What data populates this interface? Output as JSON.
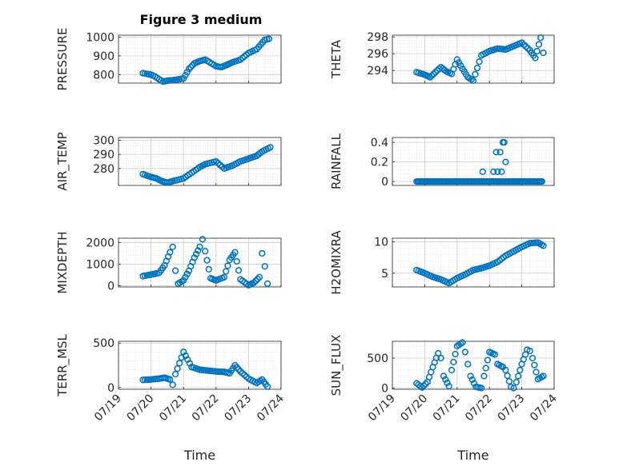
{
  "figure_title": "Figure 3 medium",
  "colors": {
    "marker": "#0072BD",
    "axis": "#262626",
    "grid": "#DCDCDC"
  },
  "chart_data": [
    {
      "type": "scatter",
      "ylabel": "PRESSURE",
      "title": "Figure 3 medium",
      "xlabel": "",
      "xlim": [
        "07/19",
        "07/24"
      ],
      "ylim": [
        755,
        1010
      ],
      "yticks": [
        800,
        900,
        1000
      ],
      "grid": true,
      "x": [
        "07/19 18:00",
        "07/20 00:00",
        "07/20 03:00",
        "07/20 06:00",
        "07/20 09:00",
        "07/20 12:00",
        "07/20 18:00",
        "07/21 00:00",
        "07/21 04:00",
        "07/21 08:00",
        "07/21 12:00",
        "07/21 16:00",
        "07/22 00:00",
        "07/22 04:00",
        "07/22 08:00",
        "07/22 12:00",
        "07/22 18:00",
        "07/23 00:00",
        "07/23 06:00",
        "07/23 09:00",
        "07/23 12:00",
        "07/23 15:00"
      ],
      "values": [
        808,
        800,
        790,
        775,
        763,
        768,
        772,
        780,
        830,
        860,
        872,
        880,
        845,
        840,
        852,
        865,
        880,
        915,
        935,
        960,
        985,
        990
      ]
    },
    {
      "type": "scatter",
      "ylabel": "THETA",
      "xlabel": "",
      "xlim": [
        "07/19",
        "07/24"
      ],
      "ylim": [
        292.5,
        298.2
      ],
      "yticks": [
        294,
        296,
        298
      ],
      "grid": true,
      "x": [
        "07/19 18:00",
        "07/20 00:00",
        "07/20 04:00",
        "07/20 08:00",
        "07/20 12:00",
        "07/20 16:00",
        "07/20 20:00",
        "07/21 00:00",
        "07/21 04:00",
        "07/21 08:00",
        "07/21 12:00",
        "07/21 18:00",
        "07/22 00:00",
        "07/22 06:00",
        "07/22 12:00",
        "07/22 18:00",
        "07/23 00:00",
        "07/23 06:00",
        "07/23 10:00",
        "07/23 14:00",
        "07/23 16:00"
      ],
      "values": [
        293.8,
        293.5,
        293.2,
        293.8,
        294.4,
        293.9,
        293.6,
        295.3,
        294.2,
        293.2,
        292.8,
        295.8,
        296.3,
        296.6,
        296.5,
        296.9,
        297.3,
        296.4,
        295.5,
        297.9,
        296.1
      ]
    },
    {
      "type": "scatter",
      "ylabel": "AIR_TEMP",
      "xlabel": "",
      "xlim": [
        "07/19",
        "07/24"
      ],
      "ylim": [
        268,
        302
      ],
      "yticks": [
        280,
        290,
        300
      ],
      "grid": true,
      "x": [
        "07/19 18:00",
        "07/20 00:00",
        "07/20 04:00",
        "07/20 08:00",
        "07/20 12:00",
        "07/20 16:00",
        "07/21 00:00",
        "07/21 06:00",
        "07/21 12:00",
        "07/21 16:00",
        "07/22 00:00",
        "07/22 06:00",
        "07/22 12:00",
        "07/22 18:00",
        "07/23 00:00",
        "07/23 06:00",
        "07/23 10:00",
        "07/23 16:00"
      ],
      "values": [
        276,
        274,
        273,
        271,
        270,
        271,
        273,
        277,
        281,
        283,
        285,
        280,
        282,
        285,
        287,
        289,
        292,
        295
      ]
    },
    {
      "type": "scatter",
      "ylabel": "RAINFALL",
      "xlabel": "",
      "xlim": [
        "07/19",
        "07/24"
      ],
      "ylim": [
        -0.04,
        0.45
      ],
      "yticks": [
        0,
        0.2,
        0.4
      ],
      "grid": true,
      "x": [
        "07/21 19:00",
        "07/22 03:00",
        "07/22 05:00",
        "07/22 06:00",
        "07/22 08:00",
        "07/22 09:00",
        "07/22 10:00",
        "07/22 11:00",
        "07/22 12:00"
      ],
      "values": [
        0.1,
        0.1,
        0.3,
        0.1,
        0.3,
        0.1,
        0.4,
        0.4,
        0.2
      ],
      "baseline_spans": [
        [
          "07/19 18:00",
          "07/23 16:00"
        ]
      ]
    },
    {
      "type": "scatter",
      "ylabel": "MIXDEPTH",
      "xlabel": "",
      "xlim": [
        "07/19",
        "07/24"
      ],
      "ylim": [
        -50,
        2200
      ],
      "yticks": [
        0,
        1000,
        2000
      ],
      "grid": true,
      "x": [
        "07/19 18:00",
        "07/20 00:00",
        "07/20 06:00",
        "07/20 10:00",
        "07/20 14:00",
        "07/20 16:00",
        "07/20 18:00",
        "07/20 20:00",
        "07/21 00:00",
        "07/21 04:00",
        "07/21 08:00",
        "07/21 12:00",
        "07/21 14:00",
        "07/21 16:00",
        "07/21 20:00",
        "07/22 00:00",
        "07/22 06:00",
        "07/22 10:00",
        "07/22 14:00",
        "07/22 18:00",
        "07/23 00:00",
        "07/23 04:00",
        "07/23 08:00",
        "07/23 10:00",
        "07/23 12:00",
        "07/23 14:00"
      ],
      "values": [
        450,
        520,
        600,
        950,
        1550,
        1800,
        700,
        100,
        250,
        700,
        1300,
        1800,
        2150,
        1600,
        350,
        250,
        400,
        1200,
        1550,
        300,
        30,
        150,
        400,
        1500,
        900,
        100
      ]
    },
    {
      "type": "scatter",
      "ylabel": "H2OMIXRA",
      "xlabel": "",
      "xlim": [
        "07/19",
        "07/24"
      ],
      "ylim": [
        2.8,
        10.6
      ],
      "yticks": [
        5,
        10
      ],
      "grid": true,
      "x": [
        "07/19 18:00",
        "07/20 00:00",
        "07/20 06:00",
        "07/20 12:00",
        "07/20 18:00",
        "07/21 00:00",
        "07/21 06:00",
        "07/21 12:00",
        "07/21 18:00",
        "07/22 00:00",
        "07/22 06:00",
        "07/22 12:00",
        "07/22 18:00",
        "07/23 00:00",
        "07/23 06:00",
        "07/23 12:00",
        "07/23 16:00"
      ],
      "values": [
        5.5,
        5.0,
        4.4,
        4.0,
        3.4,
        4.2,
        4.8,
        5.5,
        5.8,
        6.2,
        6.8,
        7.8,
        8.5,
        9.2,
        9.8,
        9.9,
        9.4
      ]
    },
    {
      "type": "scatter",
      "ylabel": "TERR_MSL",
      "xlabel": "Time",
      "xlim": [
        "07/19",
        "07/24"
      ],
      "ylim": [
        -20,
        520
      ],
      "yticks": [
        0,
        500
      ],
      "grid": true,
      "xticks": [
        "07/19",
        "07/20",
        "07/21",
        "07/22",
        "07/23",
        "07/24"
      ],
      "x": [
        "07/19 18:00",
        "07/20 00:00",
        "07/20 06:00",
        "07/20 10:00",
        "07/20 14:00",
        "07/20 16:00",
        "07/20 18:00",
        "07/21 00:00",
        "07/21 06:00",
        "07/21 12:00",
        "07/21 18:00",
        "07/22 00:00",
        "07/22 06:00",
        "07/22 10:00",
        "07/22 14:00",
        "07/22 18:00",
        "07/23 00:00",
        "07/23 06:00",
        "07/23 10:00",
        "07/23 14:00"
      ],
      "values": [
        85,
        90,
        100,
        110,
        90,
        30,
        150,
        400,
        230,
        200,
        190,
        180,
        175,
        160,
        250,
        180,
        100,
        50,
        90,
        10
      ]
    },
    {
      "type": "scatter",
      "ylabel": "SUN_FLUX",
      "xlabel": "Time",
      "xlim": [
        "07/19",
        "07/24"
      ],
      "ylim": [
        -20,
        780
      ],
      "yticks": [
        0,
        500
      ],
      "grid": true,
      "xticks": [
        "07/19",
        "07/20",
        "07/21",
        "07/22",
        "07/23",
        "07/24"
      ],
      "x": [
        "07/19 18:00",
        "07/19 22:00",
        "07/20 02:00",
        "07/20 06:00",
        "07/20 10:00",
        "07/20 12:00",
        "07/20 14:00",
        "07/20 18:00",
        "07/20 20:00",
        "07/21 00:00",
        "07/21 04:00",
        "07/21 06:00",
        "07/21 08:00",
        "07/21 10:00",
        "07/21 14:00",
        "07/21 18:00",
        "07/21 20:00",
        "07/22 00:00",
        "07/22 04:00",
        "07/22 06:00",
        "07/22 10:00",
        "07/22 12:00",
        "07/22 16:00",
        "07/22 18:00",
        "07/22 20:00",
        "07/23 00:00",
        "07/23 04:00",
        "07/23 06:00",
        "07/23 08:00",
        "07/23 12:00",
        "07/23 16:00"
      ],
      "values": [
        80,
        10,
        100,
        350,
        580,
        500,
        200,
        30,
        300,
        700,
        760,
        600,
        400,
        200,
        20,
        0,
        200,
        600,
        560,
        400,
        350,
        300,
        20,
        0,
        100,
        400,
        640,
        620,
        500,
        150,
        200
      ]
    }
  ]
}
